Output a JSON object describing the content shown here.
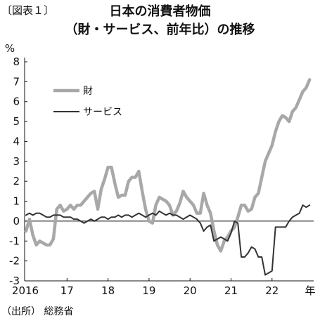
{
  "figure_label": "〔図表１〕",
  "title_line1": "日本の消費者物価",
  "title_line2": "（財・サービス、前年比）の推移",
  "source": "（出所） 総務省",
  "colors": {
    "goods": "#a8a8a8",
    "services": "#333333",
    "axis": "#111111"
  },
  "chart_data": {
    "type": "line",
    "title": "日本の消費者物価（財・サービス、前年比）の推移",
    "ylabel": "%",
    "xunit": "年",
    "ylim": [
      -3,
      8
    ],
    "y_ticks": [
      "-3",
      "-2",
      "-1",
      "0",
      "1",
      "2",
      "3",
      "4",
      "5",
      "6",
      "7",
      "8"
    ],
    "x_ticks": [
      "2016",
      "17",
      "18",
      "19",
      "20",
      "21",
      "22",
      "年"
    ],
    "x_range": [
      "2016-01",
      "2022-12"
    ],
    "grid": false,
    "legend_position": "top-left",
    "series": [
      {
        "name": "財",
        "x": [
          "2016-01",
          "2016-02",
          "2016-03",
          "2016-04",
          "2016-05",
          "2016-06",
          "2016-07",
          "2016-08",
          "2016-09",
          "2016-10",
          "2016-11",
          "2016-12",
          "2017-01",
          "2017-02",
          "2017-03",
          "2017-04",
          "2017-05",
          "2017-06",
          "2017-07",
          "2017-08",
          "2017-09",
          "2017-10",
          "2017-11",
          "2017-12",
          "2018-01",
          "2018-02",
          "2018-03",
          "2018-04",
          "2018-05",
          "2018-06",
          "2018-07",
          "2018-08",
          "2018-09",
          "2018-10",
          "2018-11",
          "2018-12",
          "2019-01",
          "2019-02",
          "2019-03",
          "2019-04",
          "2019-05",
          "2019-06",
          "2019-07",
          "2019-08",
          "2019-09",
          "2019-10",
          "2019-11",
          "2019-12",
          "2020-01",
          "2020-02",
          "2020-03",
          "2020-04",
          "2020-05",
          "2020-06",
          "2020-07",
          "2020-08",
          "2020-09",
          "2020-10",
          "2020-11",
          "2020-12",
          "2021-01",
          "2021-02",
          "2021-03",
          "2021-04",
          "2021-05",
          "2021-06",
          "2021-07",
          "2021-08",
          "2021-09",
          "2021-10",
          "2021-11",
          "2021-12",
          "2022-01",
          "2022-02",
          "2022-03",
          "2022-04",
          "2022-05",
          "2022-06",
          "2022-07",
          "2022-08",
          "2022-09",
          "2022-10",
          "2022-11",
          "2022-12"
        ],
        "values": [
          -0.5,
          0.1,
          -0.7,
          -1.2,
          -1.0,
          -1.1,
          -1.2,
          -1.2,
          -0.9,
          0.6,
          0.8,
          0.5,
          0.6,
          0.8,
          0.6,
          0.8,
          0.8,
          1.0,
          1.2,
          1.4,
          1.5,
          0.6,
          1.6,
          2.1,
          2.7,
          2.7,
          1.9,
          1.2,
          1.3,
          1.3,
          2.0,
          2.2,
          2.2,
          2.5,
          1.5,
          0.6,
          0.0,
          -0.1,
          0.8,
          1.2,
          1.1,
          1.0,
          0.8,
          0.3,
          0.5,
          0.9,
          1.5,
          1.2,
          1.0,
          0.8,
          0.4,
          0.4,
          1.4,
          0.8,
          0.4,
          -0.5,
          -1.2,
          -1.5,
          -1.0,
          -0.8,
          -0.5,
          -0.3,
          0.2,
          0.8,
          0.8,
          0.5,
          0.6,
          1.2,
          1.4,
          2.2,
          3.0,
          3.4,
          3.8,
          4.5,
          5.0,
          5.3,
          5.2,
          5.0,
          5.5,
          5.7,
          6.1,
          6.5,
          6.7,
          7.1
        ]
      },
      {
        "name": "サービス",
        "x": [
          "2016-01",
          "2016-02",
          "2016-03",
          "2016-04",
          "2016-05",
          "2016-06",
          "2016-07",
          "2016-08",
          "2016-09",
          "2016-10",
          "2016-11",
          "2016-12",
          "2017-01",
          "2017-02",
          "2017-03",
          "2017-04",
          "2017-05",
          "2017-06",
          "2017-07",
          "2017-08",
          "2017-09",
          "2017-10",
          "2017-11",
          "2017-12",
          "2018-01",
          "2018-02",
          "2018-03",
          "2018-04",
          "2018-05",
          "2018-06",
          "2018-07",
          "2018-08",
          "2018-09",
          "2018-10",
          "2018-11",
          "2018-12",
          "2019-01",
          "2019-02",
          "2019-03",
          "2019-04",
          "2019-05",
          "2019-06",
          "2019-07",
          "2019-08",
          "2019-09",
          "2019-10",
          "2019-11",
          "2019-12",
          "2020-01",
          "2020-02",
          "2020-03",
          "2020-04",
          "2020-05",
          "2020-06",
          "2020-07",
          "2020-08",
          "2020-09",
          "2020-10",
          "2020-11",
          "2020-12",
          "2021-01",
          "2021-02",
          "2021-03",
          "2021-04",
          "2021-05",
          "2021-06",
          "2021-07",
          "2021-08",
          "2021-09",
          "2021-10",
          "2021-11",
          "2021-12",
          "2022-01",
          "2022-02",
          "2022-03",
          "2022-04",
          "2022-05",
          "2022-06",
          "2022-07",
          "2022-08",
          "2022-09",
          "2022-10",
          "2022-11",
          "2022-12"
        ],
        "values": [
          0.3,
          0.4,
          0.3,
          0.4,
          0.4,
          0.3,
          0.2,
          0.2,
          0.3,
          0.3,
          0.3,
          0.2,
          0.2,
          0.2,
          0.1,
          0.1,
          0.0,
          -0.1,
          0.0,
          0.1,
          0.0,
          0.1,
          0.2,
          0.2,
          0.1,
          0.2,
          0.2,
          0.3,
          0.2,
          0.3,
          0.3,
          0.2,
          0.3,
          0.4,
          0.3,
          0.2,
          0.3,
          0.4,
          0.3,
          0.5,
          0.4,
          0.3,
          0.4,
          0.3,
          0.3,
          0.2,
          0.1,
          0.2,
          0.3,
          0.2,
          0.1,
          -0.1,
          -0.5,
          -0.3,
          -0.2,
          -1.0,
          -0.9,
          -0.8,
          -0.9,
          -1.0,
          -0.6,
          0.0,
          -0.1,
          -1.8,
          -1.8,
          -1.6,
          -1.3,
          -1.4,
          -1.8,
          -1.8,
          -2.7,
          -2.6,
          -2.5,
          -0.3,
          -0.3,
          -0.3,
          -0.3,
          0.0,
          0.2,
          0.3,
          0.4,
          0.8,
          0.7,
          0.8
        ]
      }
    ]
  }
}
